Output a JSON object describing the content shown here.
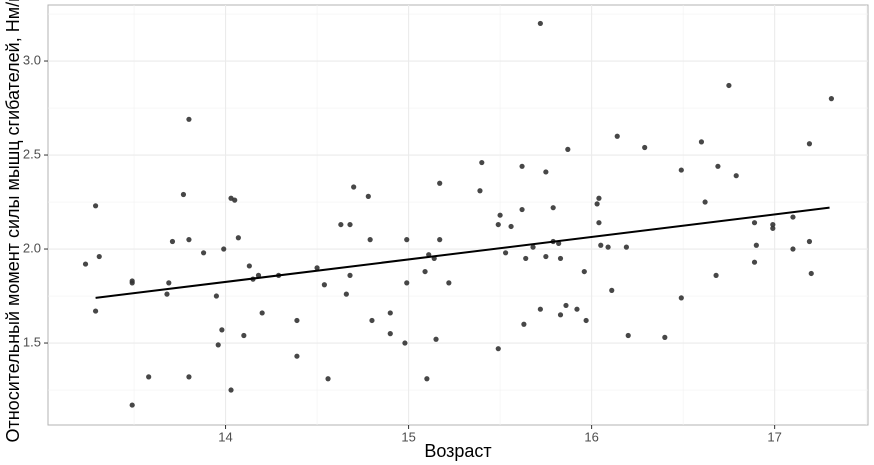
{
  "chart_data": {
    "type": "scatter",
    "x_label": "Возраст",
    "y_label": "Относительный момент силы мышц сгибателей, Нм/кг",
    "x": [
      13.235,
      13.29,
      13.29,
      13.31,
      13.49,
      13.49,
      13.49,
      13.58,
      13.68,
      13.69,
      13.71,
      13.77,
      13.8,
      13.8,
      13.8,
      13.88,
      13.95,
      13.96,
      13.98,
      13.99,
      14.03,
      14.03,
      14.05,
      14.07,
      14.1,
      14.13,
      14.15,
      14.18,
      14.2,
      14.29,
      14.39,
      14.39,
      14.5,
      14.54,
      14.56,
      14.63,
      14.66,
      14.68,
      14.68,
      14.7,
      14.78,
      14.79,
      14.8,
      14.9,
      14.9,
      14.98,
      14.99,
      14.99,
      15.09,
      15.11,
      15.1,
      15.14,
      15.15,
      15.17,
      15.17,
      15.22,
      15.39,
      15.4,
      15.49,
      15.5,
      15.49,
      15.53,
      15.56,
      15.62,
      15.62,
      15.63,
      15.64,
      15.68,
      15.72,
      15.72,
      15.75,
      15.75,
      15.79,
      15.79,
      15.82,
      15.83,
      15.83,
      15.86,
      15.87,
      15.92,
      15.96,
      15.97,
      16.03,
      16.04,
      16.04,
      16.05,
      16.09,
      16.11,
      16.14,
      16.19,
      16.2,
      16.29,
      16.4,
      16.49,
      16.49,
      16.6,
      16.62,
      16.68,
      16.69,
      16.75,
      16.79,
      16.89,
      16.89,
      16.9,
      16.99,
      16.99,
      17.1,
      17.1,
      17.19,
      17.19,
      17.2,
      17.31
    ],
    "y": [
      1.92,
      2.23,
      1.67,
      1.96,
      1.17,
      1.82,
      1.83,
      1.32,
      1.76,
      1.82,
      2.04,
      2.29,
      2.69,
      1.32,
      2.05,
      1.98,
      1.75,
      1.49,
      1.57,
      2.0,
      2.27,
      1.25,
      2.26,
      2.06,
      1.54,
      1.91,
      1.84,
      1.86,
      1.66,
      1.86,
      1.43,
      1.62,
      1.9,
      1.81,
      1.31,
      2.13,
      1.76,
      2.13,
      1.86,
      2.33,
      2.28,
      2.05,
      1.62,
      1.66,
      1.55,
      1.5,
      2.05,
      1.82,
      1.88,
      1.97,
      1.31,
      1.95,
      1.52,
      2.35,
      2.05,
      1.82,
      2.31,
      2.46,
      1.47,
      2.18,
      2.13,
      1.98,
      2.12,
      2.44,
      2.21,
      1.6,
      1.95,
      2.01,
      3.2,
      1.68,
      2.41,
      1.96,
      2.04,
      2.22,
      2.03,
      1.95,
      1.65,
      1.7,
      2.53,
      1.68,
      1.88,
      1.62,
      2.24,
      2.27,
      2.14,
      2.02,
      2.01,
      1.78,
      2.6,
      2.01,
      1.54,
      2.54,
      1.53,
      2.42,
      1.74,
      2.57,
      2.25,
      1.86,
      2.44,
      2.87,
      2.39,
      2.14,
      1.93,
      2.02,
      2.13,
      2.11,
      2.17,
      2.0,
      2.56,
      2.04,
      1.87,
      2.8
    ],
    "color": "#333333",
    "fit_x": [
      13.29,
      17.3
    ],
    "fit_y": [
      1.74,
      2.22
    ],
    "fit_color": "#000000",
    "xlim": [
      13.03,
      17.51
    ],
    "ylim": [
      1.064,
      3.298
    ],
    "xticks": [
      14,
      15,
      16,
      17
    ],
    "yticks": [
      {
        "value": 1.5,
        "label": "1.5"
      },
      {
        "value": 2,
        "label": "2.0"
      },
      {
        "value": 2.5,
        "label": "2.5"
      },
      {
        "value": 3,
        "label": "3.0"
      }
    ],
    "xminor": [
      13.5,
      14.5,
      15.5,
      16.5,
      17.5
    ],
    "yminor": [
      1.25,
      1.75,
      2.25,
      2.75,
      3.25
    ],
    "grid": true
  }
}
